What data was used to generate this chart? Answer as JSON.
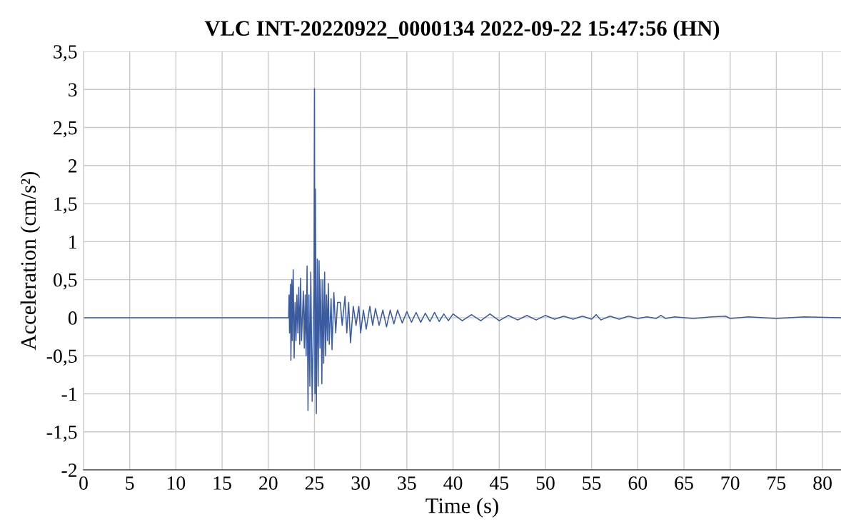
{
  "chart_data": {
    "type": "line",
    "title": "VLC INT-20220922_0000134 2022-09-22 15:47:56 (HN)",
    "xlabel": "Time (s)",
    "ylabel": "Acceleration (cm/s²)",
    "xlim": [
      0,
      82
    ],
    "ylim": [
      -2,
      3.5
    ],
    "xticks": [
      0,
      5,
      10,
      15,
      20,
      25,
      30,
      35,
      40,
      45,
      50,
      55,
      60,
      65,
      70,
      75,
      80
    ],
    "yticks": [
      -2,
      {
        "value": -1.5,
        "label": "-1,5"
      },
      -1,
      {
        "value": -0.5,
        "label": "-0,5"
      },
      0,
      {
        "value": 0.5,
        "label": "0,5"
      },
      1,
      {
        "value": 1.5,
        "label": "1,5"
      },
      2,
      {
        "value": 2.5,
        "label": "2,5"
      },
      3,
      {
        "value": 3.5,
        "label": "3,5"
      }
    ],
    "grid": true,
    "marker": "none",
    "line_style": "solid",
    "series": [
      {
        "color": "#3a5ba0",
        "x": [
          0,
          10,
          22.0,
          22.2,
          22.25,
          22.3,
          22.4,
          22.45,
          22.55,
          22.6,
          22.7,
          22.8,
          22.9,
          23.0,
          23.1,
          23.2,
          23.3,
          23.4,
          23.5,
          23.6,
          23.8,
          23.9,
          24.0,
          24.1,
          24.2,
          24.3,
          24.4,
          24.5,
          24.6,
          24.75,
          24.95,
          25.0,
          25.05,
          25.1,
          25.2,
          25.3,
          25.4,
          25.5,
          25.6,
          25.7,
          25.8,
          25.9,
          26.0,
          26.1,
          26.2,
          26.3,
          26.4,
          26.5,
          26.6,
          26.8,
          26.9,
          27.1,
          27.3,
          27.5,
          27.8,
          28.0,
          28.3,
          28.5,
          28.7,
          28.9,
          29.2,
          29.5,
          29.8,
          30.0,
          30.3,
          30.6,
          31.0,
          31.3,
          31.6,
          32.0,
          32.4,
          32.8,
          33.2,
          33.6,
          34.0,
          34.5,
          35.0,
          35.5,
          36.0,
          36.5,
          37.0,
          37.5,
          38.0,
          38.5,
          39.0,
          39.5,
          40.0,
          41.0,
          42.0,
          43.0,
          44.0,
          45.0,
          46.0,
          47.0,
          48.0,
          49.0,
          50.0,
          51.0,
          52.0,
          53.0,
          54.0,
          55.0,
          55.5,
          56.0,
          57.0,
          58.0,
          59.0,
          60.0,
          61.0,
          62.0,
          62.5,
          63.0,
          64.0,
          66.0,
          68.0,
          69.5,
          70.0,
          72.0,
          75.0,
          78.0,
          82.0
        ],
        "values": [
          0,
          0,
          0,
          0,
          0.3,
          -0.2,
          0.44,
          -0.56,
          0.5,
          -0.3,
          0.63,
          -0.53,
          0.2,
          -0.3,
          0.3,
          -0.2,
          0.4,
          -0.35,
          0.52,
          -0.3,
          0.35,
          -0.4,
          0.3,
          -0.5,
          0.68,
          -1.22,
          0.3,
          -0.9,
          0.6,
          -1.1,
          0.4,
          3.01,
          -1.0,
          1.69,
          -1.26,
          0.77,
          -0.9,
          0.75,
          -0.4,
          0.5,
          -0.87,
          0.5,
          -0.6,
          0.6,
          -0.5,
          0.3,
          -0.3,
          0.45,
          -0.35,
          0.25,
          -0.42,
          0.33,
          -0.2,
          0.2,
          0.2,
          -0.1,
          0.28,
          -0.2,
          0.2,
          -0.33,
          0.15,
          -0.1,
          0.15,
          -0.2,
          0.1,
          -0.15,
          0.15,
          -0.1,
          0.12,
          -0.1,
          0.1,
          -0.12,
          0.1,
          -0.08,
          0.1,
          -0.07,
          0.08,
          -0.06,
          0.07,
          -0.06,
          0.06,
          -0.05,
          0.07,
          -0.05,
          0.05,
          -0.04,
          0.05,
          -0.04,
          0.04,
          -0.04,
          0.05,
          -0.04,
          0.03,
          -0.03,
          0.03,
          -0.03,
          0.03,
          -0.02,
          0.02,
          -0.02,
          0.02,
          -0.02,
          0.04,
          -0.03,
          0.02,
          -0.02,
          0.02,
          -0.01,
          0.01,
          -0.01,
          0.03,
          -0.01,
          0.01,
          -0.01,
          0.01,
          0.02,
          -0.01,
          0.01,
          -0.01,
          0.01,
          0
        ]
      }
    ]
  }
}
